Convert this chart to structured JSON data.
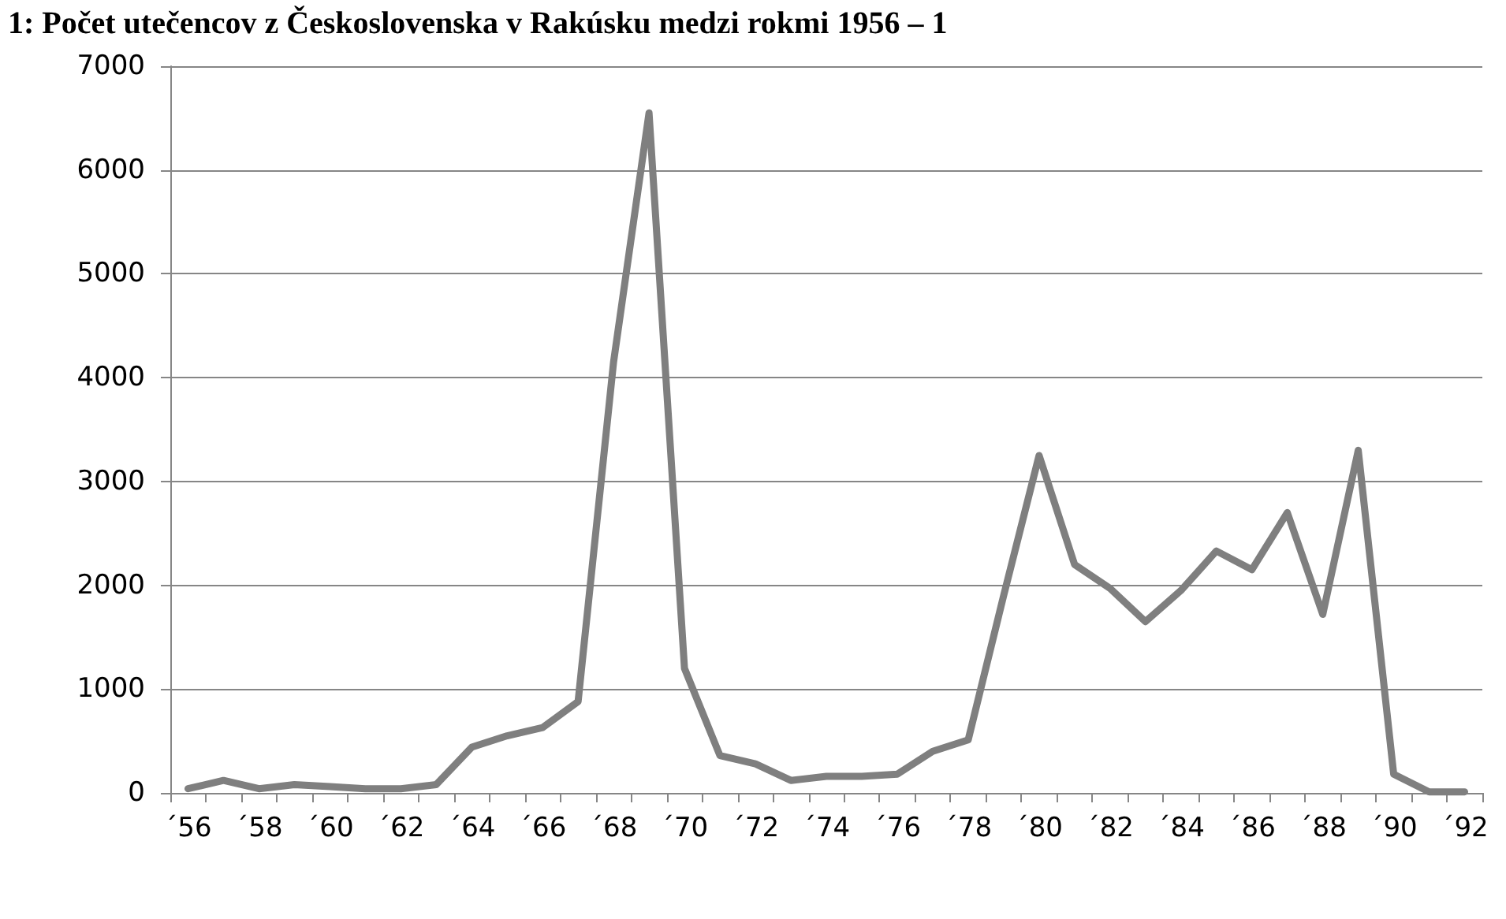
{
  "chart_data": {
    "type": "line",
    "title": "1: Počet utečencov z Československa v Rakúsku medzi rokmi 1956 – 1",
    "categories": [
      "´56",
      null,
      "´58",
      null,
      "´60",
      null,
      "´62",
      null,
      "´64",
      null,
      "´66",
      null,
      "´68",
      null,
      "´70",
      null,
      "´72",
      null,
      "´74",
      null,
      "´76",
      null,
      "´78",
      null,
      "´80",
      null,
      "´82",
      null,
      "´84",
      null,
      "´86",
      null,
      "´88",
      null,
      "´90",
      null,
      "´92"
    ],
    "series": [
      {
        "color": "#7f7f7f",
        "values": [
          40,
          120,
          40,
          80,
          60,
          40,
          40,
          80,
          440,
          550,
          630,
          880,
          4150,
          6550,
          1200,
          360,
          280,
          120,
          160,
          160,
          180,
          400,
          510,
          1900,
          3250,
          2200,
          1970,
          1650,
          1950,
          2330,
          2150,
          2700,
          1720,
          3300,
          180,
          10,
          10
        ]
      }
    ],
    "ylim": [
      0,
      7000
    ],
    "yticks": [
      0,
      1000,
      2000,
      3000,
      4000,
      5000,
      6000,
      7000
    ],
    "grid": "y",
    "marker": "none",
    "line_style": "solid"
  }
}
